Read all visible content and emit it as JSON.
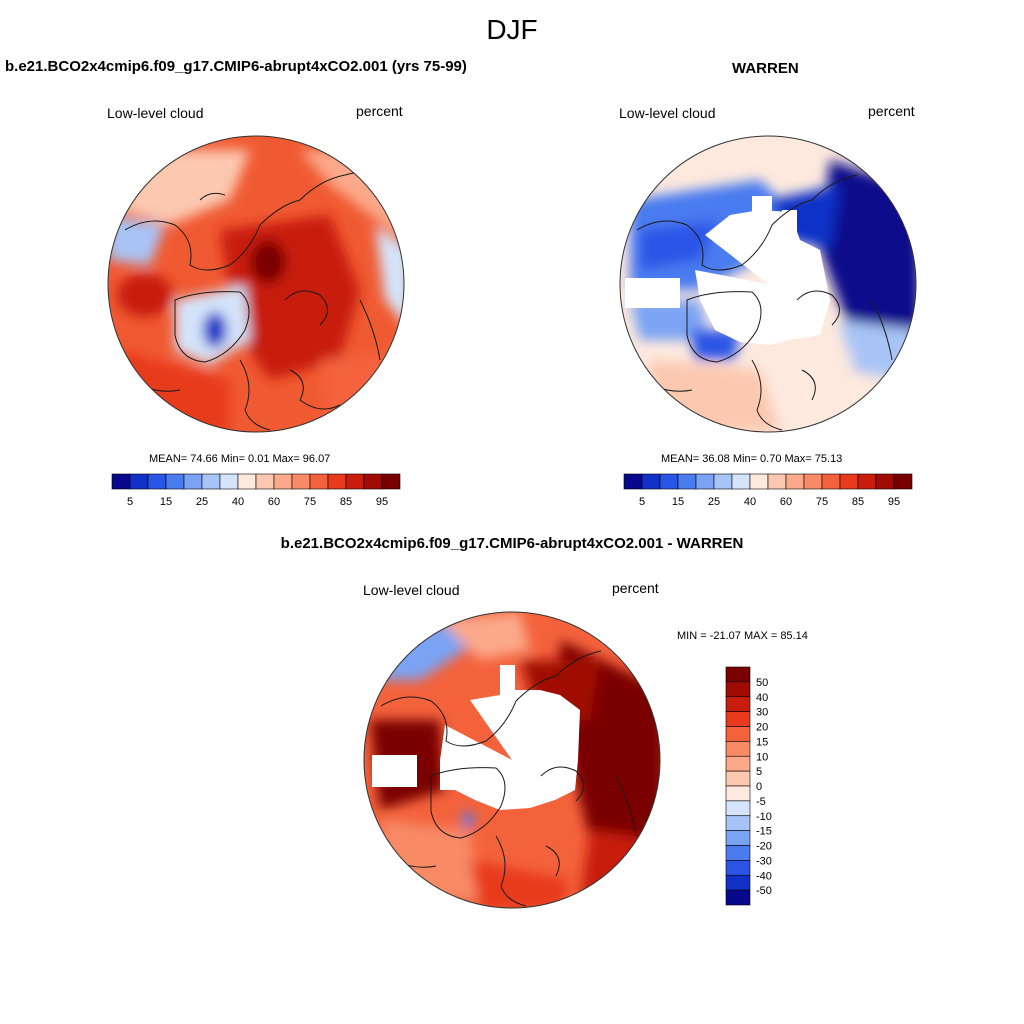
{
  "figure": {
    "season": "DJF",
    "variable": "Low-level cloud",
    "units": "percent"
  },
  "panels": {
    "model": {
      "title": "b.e21.BCO2x4cmip6.f09_g17.CMIP6-abrupt4xCO2.001 (yrs 75-99)",
      "variable": "Low-level cloud",
      "units": "percent",
      "stats_label": "MEAN=  74.66  Min=   0.01  Max=  96.07"
    },
    "obs": {
      "title": "WARREN",
      "variable": "Low-level cloud",
      "units": "percent",
      "stats_label": "MEAN=  36.08  Min=   0.70  Max=  75.13"
    },
    "diff": {
      "title": "b.e21.BCO2x4cmip6.f09_g17.CMIP6-abrupt4xCO2.001 - WARREN",
      "variable": "Low-level cloud",
      "units": "percent",
      "stats_label": "MIN = -21.07 MAX =  85.14"
    }
  },
  "colorbars": {
    "abs": {
      "levels": [
        5,
        10,
        15,
        20,
        25,
        30,
        40,
        50,
        60,
        70,
        75,
        80,
        85,
        90,
        95
      ],
      "tick_labels": [
        "5",
        "15",
        "25",
        "40",
        "60",
        "75",
        "85",
        "95"
      ],
      "colors": [
        "#08088c",
        "#1030c8",
        "#2a55e6",
        "#4a7cf0",
        "#7aa3f4",
        "#a8c4f6",
        "#d4e4fa",
        "#fde9de",
        "#fcc8b0",
        "#fba98a",
        "#f88a66",
        "#f4623c",
        "#e83a1c",
        "#c81c0c",
        "#a00c04",
        "#7a0000"
      ]
    },
    "diff": {
      "tick_labels": [
        "50",
        "40",
        "30",
        "20",
        "15",
        "10",
        "5",
        "0",
        "-5",
        "-10",
        "-15",
        "-20",
        "-30",
        "-40",
        "-50"
      ],
      "colors": [
        "#7a0000",
        "#a00c04",
        "#c81c0c",
        "#e83a1c",
        "#f4623c",
        "#f88a66",
        "#fba98a",
        "#fcc8b0",
        "#fde9de",
        "#d4e4fa",
        "#a8c4f6",
        "#7aa3f4",
        "#4a7cf0",
        "#2a55e6",
        "#1030c8",
        "#08088c"
      ]
    }
  },
  "chart_data": [
    {
      "type": "heatmap",
      "title": "b.e21.BCO2x4cmip6.f09_g17.CMIP6-abrupt4xCO2.001 (yrs 75-99)",
      "projection": "north polar stereographic",
      "field": "Low-level cloud (percent), DJF",
      "mean": 74.66,
      "min": 0.01,
      "max": 96.07
    },
    {
      "type": "heatmap",
      "title": "WARREN",
      "projection": "north polar stereographic",
      "field": "Low-level cloud (percent), DJF",
      "mean": 36.08,
      "min": 0.7,
      "max": 75.13
    },
    {
      "type": "heatmap",
      "title": "b.e21.BCO2x4cmip6.f09_g17.CMIP6-abrupt4xCO2.001 - WARREN",
      "projection": "north polar stereographic",
      "field": "Low-level cloud difference (percent), DJF",
      "min": -21.07,
      "max": 85.14
    }
  ]
}
